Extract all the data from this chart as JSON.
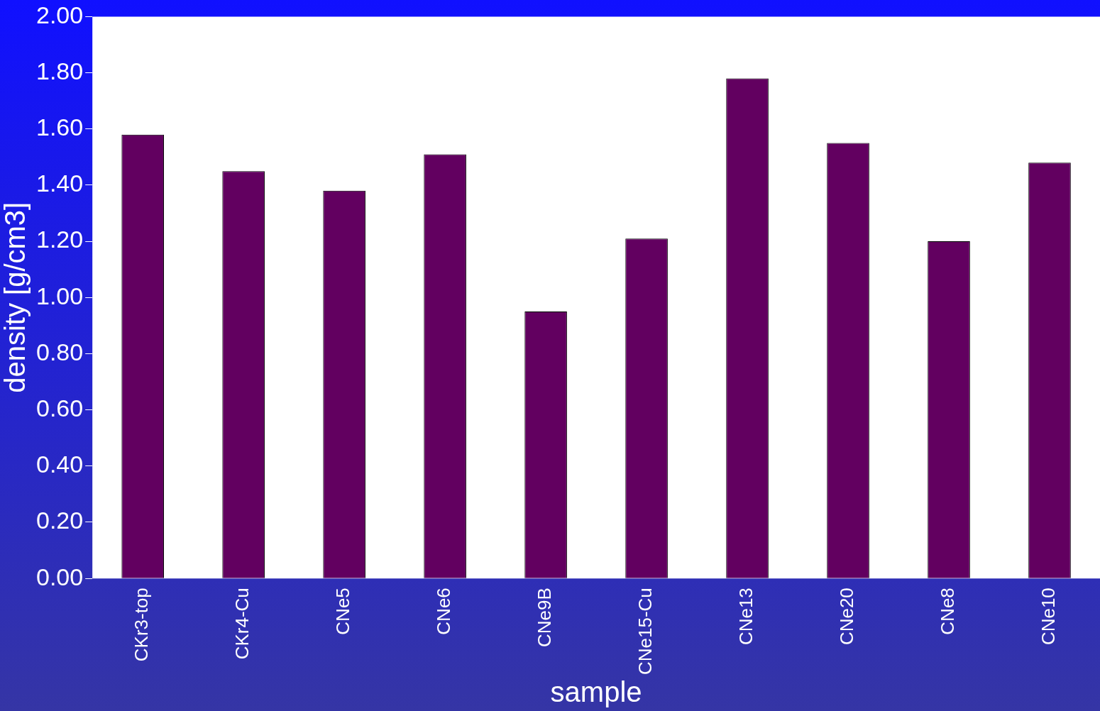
{
  "chart_data": {
    "type": "bar",
    "xlabel": "sample",
    "ylabel": "density [g/cm3]",
    "categories": [
      "CKr3-top",
      "CKr4-Cu",
      "CNe5",
      "CNe6",
      "CNe9B",
      "CNe15-Cu",
      "CNe13",
      "CNe20",
      "CNe8",
      "CNe10"
    ],
    "values": [
      1.58,
      1.45,
      1.38,
      1.51,
      0.95,
      1.21,
      1.78,
      1.55,
      1.2,
      1.48
    ],
    "color": "#620060",
    "ylim": [
      0,
      2
    ],
    "yticks": [
      {
        "value": 0,
        "label": "0.00"
      },
      {
        "value": 0.2,
        "label": "0.20"
      },
      {
        "value": 0.4,
        "label": "0.40"
      },
      {
        "value": 0.6,
        "label": "0.60"
      },
      {
        "value": 0.8,
        "label": "0.80"
      },
      {
        "value": 1,
        "label": "1.00"
      },
      {
        "value": 1.2,
        "label": "1.20"
      },
      {
        "value": 1.4,
        "label": "1.40"
      },
      {
        "value": 1.6,
        "label": "1.60"
      },
      {
        "value": 1.8,
        "label": "1.80"
      },
      {
        "value": 2,
        "label": "2.00"
      }
    ],
    "grid": false
  }
}
